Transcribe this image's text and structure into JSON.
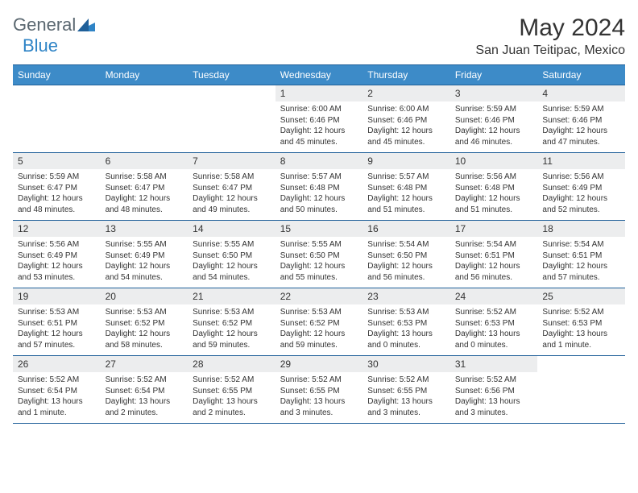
{
  "logo": {
    "text1": "General",
    "text2": "Blue"
  },
  "title": "May 2024",
  "location": "San Juan Teitipac, Mexico",
  "colors": {
    "header_bg": "#3d8bc8",
    "header_border": "#1f5f99",
    "daynum_bg": "#ecedee",
    "text": "#333333",
    "logo_grey": "#5a6770",
    "logo_blue": "#2f84c6"
  },
  "dayNames": [
    "Sunday",
    "Monday",
    "Tuesday",
    "Wednesday",
    "Thursday",
    "Friday",
    "Saturday"
  ],
  "weeks": [
    [
      {
        "n": "",
        "s": "",
        "t": "",
        "d": "",
        "empty": true
      },
      {
        "n": "",
        "s": "",
        "t": "",
        "d": "",
        "empty": true
      },
      {
        "n": "",
        "s": "",
        "t": "",
        "d": "",
        "empty": true
      },
      {
        "n": "1",
        "s": "Sunrise: 6:00 AM",
        "t": "Sunset: 6:46 PM",
        "d": "Daylight: 12 hours and 45 minutes."
      },
      {
        "n": "2",
        "s": "Sunrise: 6:00 AM",
        "t": "Sunset: 6:46 PM",
        "d": "Daylight: 12 hours and 45 minutes."
      },
      {
        "n": "3",
        "s": "Sunrise: 5:59 AM",
        "t": "Sunset: 6:46 PM",
        "d": "Daylight: 12 hours and 46 minutes."
      },
      {
        "n": "4",
        "s": "Sunrise: 5:59 AM",
        "t": "Sunset: 6:46 PM",
        "d": "Daylight: 12 hours and 47 minutes."
      }
    ],
    [
      {
        "n": "5",
        "s": "Sunrise: 5:59 AM",
        "t": "Sunset: 6:47 PM",
        "d": "Daylight: 12 hours and 48 minutes."
      },
      {
        "n": "6",
        "s": "Sunrise: 5:58 AM",
        "t": "Sunset: 6:47 PM",
        "d": "Daylight: 12 hours and 48 minutes."
      },
      {
        "n": "7",
        "s": "Sunrise: 5:58 AM",
        "t": "Sunset: 6:47 PM",
        "d": "Daylight: 12 hours and 49 minutes."
      },
      {
        "n": "8",
        "s": "Sunrise: 5:57 AM",
        "t": "Sunset: 6:48 PM",
        "d": "Daylight: 12 hours and 50 minutes."
      },
      {
        "n": "9",
        "s": "Sunrise: 5:57 AM",
        "t": "Sunset: 6:48 PM",
        "d": "Daylight: 12 hours and 51 minutes."
      },
      {
        "n": "10",
        "s": "Sunrise: 5:56 AM",
        "t": "Sunset: 6:48 PM",
        "d": "Daylight: 12 hours and 51 minutes."
      },
      {
        "n": "11",
        "s": "Sunrise: 5:56 AM",
        "t": "Sunset: 6:49 PM",
        "d": "Daylight: 12 hours and 52 minutes."
      }
    ],
    [
      {
        "n": "12",
        "s": "Sunrise: 5:56 AM",
        "t": "Sunset: 6:49 PM",
        "d": "Daylight: 12 hours and 53 minutes."
      },
      {
        "n": "13",
        "s": "Sunrise: 5:55 AM",
        "t": "Sunset: 6:49 PM",
        "d": "Daylight: 12 hours and 54 minutes."
      },
      {
        "n": "14",
        "s": "Sunrise: 5:55 AM",
        "t": "Sunset: 6:50 PM",
        "d": "Daylight: 12 hours and 54 minutes."
      },
      {
        "n": "15",
        "s": "Sunrise: 5:55 AM",
        "t": "Sunset: 6:50 PM",
        "d": "Daylight: 12 hours and 55 minutes."
      },
      {
        "n": "16",
        "s": "Sunrise: 5:54 AM",
        "t": "Sunset: 6:50 PM",
        "d": "Daylight: 12 hours and 56 minutes."
      },
      {
        "n": "17",
        "s": "Sunrise: 5:54 AM",
        "t": "Sunset: 6:51 PM",
        "d": "Daylight: 12 hours and 56 minutes."
      },
      {
        "n": "18",
        "s": "Sunrise: 5:54 AM",
        "t": "Sunset: 6:51 PM",
        "d": "Daylight: 12 hours and 57 minutes."
      }
    ],
    [
      {
        "n": "19",
        "s": "Sunrise: 5:53 AM",
        "t": "Sunset: 6:51 PM",
        "d": "Daylight: 12 hours and 57 minutes."
      },
      {
        "n": "20",
        "s": "Sunrise: 5:53 AM",
        "t": "Sunset: 6:52 PM",
        "d": "Daylight: 12 hours and 58 minutes."
      },
      {
        "n": "21",
        "s": "Sunrise: 5:53 AM",
        "t": "Sunset: 6:52 PM",
        "d": "Daylight: 12 hours and 59 minutes."
      },
      {
        "n": "22",
        "s": "Sunrise: 5:53 AM",
        "t": "Sunset: 6:52 PM",
        "d": "Daylight: 12 hours and 59 minutes."
      },
      {
        "n": "23",
        "s": "Sunrise: 5:53 AM",
        "t": "Sunset: 6:53 PM",
        "d": "Daylight: 13 hours and 0 minutes."
      },
      {
        "n": "24",
        "s": "Sunrise: 5:52 AM",
        "t": "Sunset: 6:53 PM",
        "d": "Daylight: 13 hours and 0 minutes."
      },
      {
        "n": "25",
        "s": "Sunrise: 5:52 AM",
        "t": "Sunset: 6:53 PM",
        "d": "Daylight: 13 hours and 1 minute."
      }
    ],
    [
      {
        "n": "26",
        "s": "Sunrise: 5:52 AM",
        "t": "Sunset: 6:54 PM",
        "d": "Daylight: 13 hours and 1 minute."
      },
      {
        "n": "27",
        "s": "Sunrise: 5:52 AM",
        "t": "Sunset: 6:54 PM",
        "d": "Daylight: 13 hours and 2 minutes."
      },
      {
        "n": "28",
        "s": "Sunrise: 5:52 AM",
        "t": "Sunset: 6:55 PM",
        "d": "Daylight: 13 hours and 2 minutes."
      },
      {
        "n": "29",
        "s": "Sunrise: 5:52 AM",
        "t": "Sunset: 6:55 PM",
        "d": "Daylight: 13 hours and 3 minutes."
      },
      {
        "n": "30",
        "s": "Sunrise: 5:52 AM",
        "t": "Sunset: 6:55 PM",
        "d": "Daylight: 13 hours and 3 minutes."
      },
      {
        "n": "31",
        "s": "Sunrise: 5:52 AM",
        "t": "Sunset: 6:56 PM",
        "d": "Daylight: 13 hours and 3 minutes."
      },
      {
        "n": "",
        "s": "",
        "t": "",
        "d": "",
        "empty": true
      }
    ]
  ]
}
